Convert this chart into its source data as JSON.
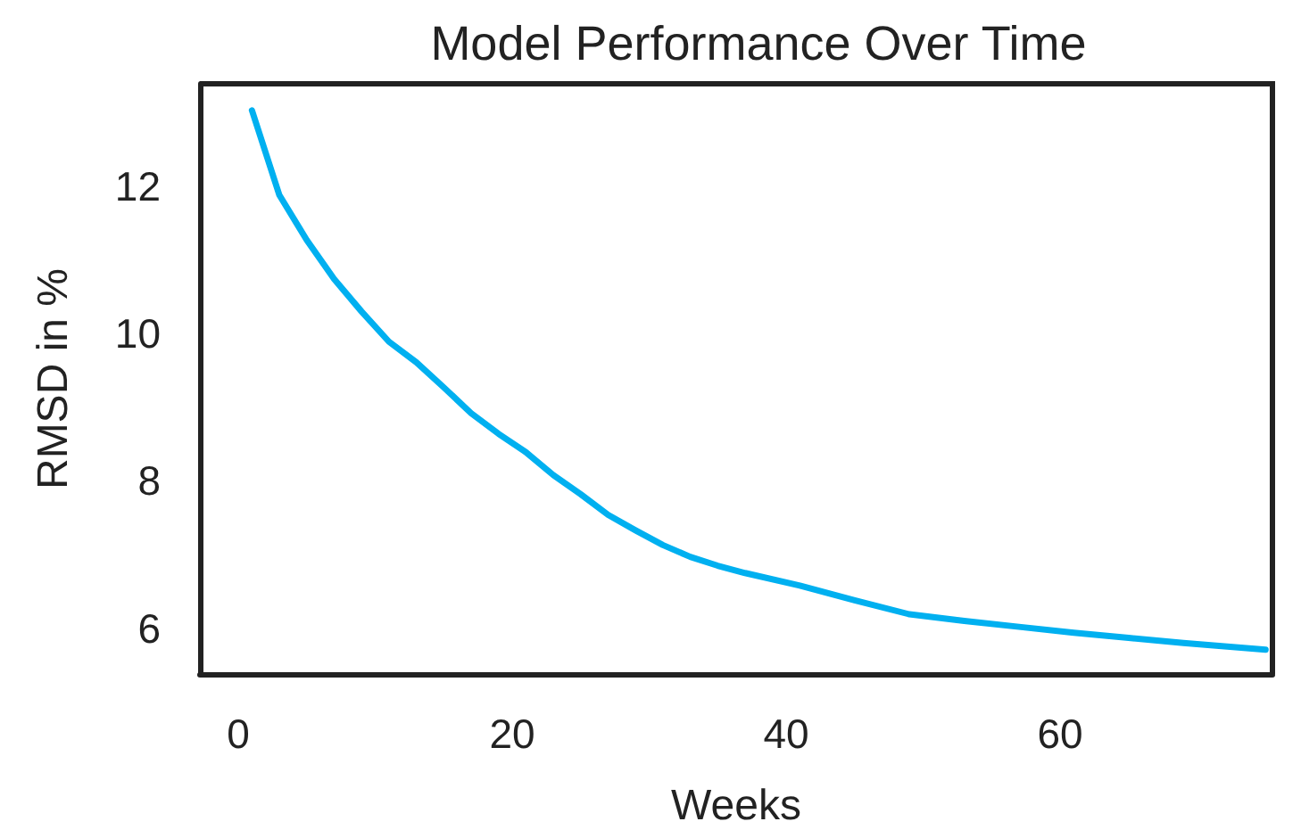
{
  "chart_data": {
    "type": "line",
    "title": "Model Performance Over Time",
    "xlabel": "Weeks",
    "ylabel": "RMSD in %",
    "x": [
      1,
      3,
      5,
      7,
      9,
      11,
      13,
      15,
      17,
      19,
      21,
      23,
      25,
      27,
      29,
      31,
      33,
      35,
      37,
      41,
      45,
      49,
      53,
      57,
      61,
      65,
      69,
      75
    ],
    "series": [
      {
        "color": "#00b0f0",
        "values": [
          13.03,
          11.88,
          11.27,
          10.74,
          10.3,
          9.89,
          9.61,
          9.27,
          8.92,
          8.64,
          8.39,
          8.08,
          7.82,
          7.54,
          7.33,
          7.13,
          6.97,
          6.85,
          6.75,
          6.58,
          6.38,
          6.19,
          6.1,
          6.02,
          5.94,
          5.87,
          5.8,
          5.71
        ]
      }
    ],
    "xlim": [
      -2.8,
      75.5
    ],
    "ylim": [
      5.38,
      13.39
    ],
    "xticks": [
      0,
      20,
      40,
      60
    ],
    "yticks": [
      6,
      8,
      10,
      12
    ],
    "grid": false,
    "marker": "none",
    "line_style": "solid"
  }
}
